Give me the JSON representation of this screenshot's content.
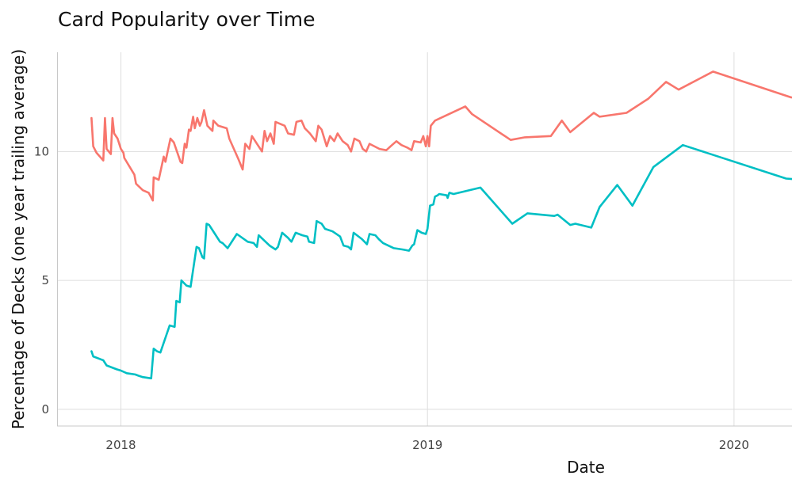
{
  "chart_data": {
    "type": "line",
    "title": "Card Popularity over Time",
    "xlabel": "Date",
    "ylabel": "Percentage of Decks (one year trailing average)",
    "x_ticks": [
      {
        "date": "2018-01-01",
        "label": "2018"
      },
      {
        "date": "2019-01-01",
        "label": "2019"
      },
      {
        "date": "2020-01-01",
        "label": "2020"
      }
    ],
    "y_ticks": [
      {
        "value": 0,
        "label": "0"
      },
      {
        "value": 5,
        "label": "5"
      },
      {
        "value": 10,
        "label": "10"
      }
    ],
    "xlim": [
      "2017-10-17",
      "2020-03-10"
    ],
    "ylim": [
      -0.65,
      13.85
    ],
    "grid": true,
    "legend": "none",
    "series": [
      {
        "color": "#f8766d",
        "points": [
          [
            "2017-11-27",
            11.3
          ],
          [
            "2017-11-29",
            10.2
          ],
          [
            "2017-12-03",
            9.95
          ],
          [
            "2017-12-11",
            9.65
          ],
          [
            "2017-12-13",
            11.3
          ],
          [
            "2017-12-15",
            10.1
          ],
          [
            "2017-12-20",
            9.9
          ],
          [
            "2017-12-22",
            11.3
          ],
          [
            "2017-12-24",
            10.7
          ],
          [
            "2017-12-28",
            10.5
          ],
          [
            "2018-01-01",
            10.1
          ],
          [
            "2018-01-04",
            9.95
          ],
          [
            "2018-01-05",
            9.75
          ],
          [
            "2018-01-17",
            9.1
          ],
          [
            "2018-01-19",
            8.75
          ],
          [
            "2018-01-27",
            8.5
          ],
          [
            "2018-02-03",
            8.4
          ],
          [
            "2018-02-08",
            8.1
          ],
          [
            "2018-02-09",
            9.0
          ],
          [
            "2018-02-15",
            8.9
          ],
          [
            "2018-02-21",
            9.8
          ],
          [
            "2018-02-23",
            9.6
          ],
          [
            "2018-03-01",
            10.5
          ],
          [
            "2018-03-05",
            10.35
          ],
          [
            "2018-03-13",
            9.6
          ],
          [
            "2018-03-15",
            9.55
          ],
          [
            "2018-03-18",
            10.3
          ],
          [
            "2018-03-20",
            10.15
          ],
          [
            "2018-03-23",
            10.85
          ],
          [
            "2018-03-25",
            10.8
          ],
          [
            "2018-03-28",
            11.35
          ],
          [
            "2018-03-30",
            10.9
          ],
          [
            "2018-04-02",
            11.3
          ],
          [
            "2018-04-05",
            11.0
          ],
          [
            "2018-04-07",
            11.15
          ],
          [
            "2018-04-10",
            11.6
          ],
          [
            "2018-04-14",
            11.0
          ],
          [
            "2018-04-20",
            10.8
          ],
          [
            "2018-04-21",
            11.2
          ],
          [
            "2018-04-27",
            11.0
          ],
          [
            "2018-05-07",
            10.9
          ],
          [
            "2018-05-10",
            10.5
          ],
          [
            "2018-05-21",
            9.7
          ],
          [
            "2018-05-26",
            9.3
          ],
          [
            "2018-05-29",
            10.3
          ],
          [
            "2018-06-03",
            10.1
          ],
          [
            "2018-06-06",
            10.6
          ],
          [
            "2018-06-12",
            10.3
          ],
          [
            "2018-06-18",
            10.0
          ],
          [
            "2018-06-21",
            10.8
          ],
          [
            "2018-06-24",
            10.4
          ],
          [
            "2018-06-28",
            10.7
          ],
          [
            "2018-07-02",
            10.3
          ],
          [
            "2018-07-04",
            11.15
          ],
          [
            "2018-07-15",
            11.0
          ],
          [
            "2018-07-19",
            10.7
          ],
          [
            "2018-07-26",
            10.65
          ],
          [
            "2018-07-29",
            11.15
          ],
          [
            "2018-08-04",
            11.2
          ],
          [
            "2018-08-08",
            10.9
          ],
          [
            "2018-08-14",
            10.7
          ],
          [
            "2018-08-21",
            10.4
          ],
          [
            "2018-08-24",
            11.0
          ],
          [
            "2018-08-28",
            10.85
          ],
          [
            "2018-09-03",
            10.2
          ],
          [
            "2018-09-07",
            10.6
          ],
          [
            "2018-09-12",
            10.4
          ],
          [
            "2018-09-16",
            10.7
          ],
          [
            "2018-09-22",
            10.4
          ],
          [
            "2018-09-28",
            10.25
          ],
          [
            "2018-10-02",
            10.0
          ],
          [
            "2018-10-06",
            10.5
          ],
          [
            "2018-10-12",
            10.4
          ],
          [
            "2018-10-16",
            10.1
          ],
          [
            "2018-10-20",
            10.0
          ],
          [
            "2018-10-24",
            10.3
          ],
          [
            "2018-11-05",
            10.1
          ],
          [
            "2018-11-13",
            10.05
          ],
          [
            "2018-11-18",
            10.2
          ],
          [
            "2018-11-25",
            10.4
          ],
          [
            "2018-12-01",
            10.25
          ],
          [
            "2018-12-08",
            10.15
          ],
          [
            "2018-12-13",
            10.05
          ],
          [
            "2018-12-16",
            10.4
          ],
          [
            "2018-12-24",
            10.35
          ],
          [
            "2018-12-27",
            10.6
          ],
          [
            "2018-12-30",
            10.2
          ],
          [
            "2019-01-01",
            10.6
          ],
          [
            "2019-01-03",
            10.2
          ],
          [
            "2019-01-05",
            11.0
          ],
          [
            "2019-01-10",
            11.2
          ],
          [
            "2019-02-15",
            11.75
          ],
          [
            "2019-02-23",
            11.45
          ],
          [
            "2019-04-10",
            10.45
          ],
          [
            "2019-04-27",
            10.55
          ],
          [
            "2019-05-28",
            10.6
          ],
          [
            "2019-06-10",
            11.2
          ],
          [
            "2019-06-20",
            10.75
          ],
          [
            "2019-07-18",
            11.5
          ],
          [
            "2019-07-25",
            11.35
          ],
          [
            "2019-08-26",
            11.5
          ],
          [
            "2019-09-21",
            12.05
          ],
          [
            "2019-10-12",
            12.7
          ],
          [
            "2019-10-27",
            12.4
          ],
          [
            "2019-12-07",
            13.1
          ],
          [
            "2020-03-09",
            12.1
          ],
          [
            "2020-06-07",
            11.8
          ]
        ]
      },
      {
        "color": "#00bfc4",
        "points": [
          [
            "2017-11-27",
            2.25
          ],
          [
            "2017-11-29",
            2.05
          ],
          [
            "2017-12-11",
            1.9
          ],
          [
            "2017-12-15",
            1.7
          ],
          [
            "2017-12-27",
            1.55
          ],
          [
            "2018-01-01",
            1.5
          ],
          [
            "2018-01-08",
            1.4
          ],
          [
            "2018-01-18",
            1.35
          ],
          [
            "2018-01-22",
            1.3
          ],
          [
            "2018-01-27",
            1.25
          ],
          [
            "2018-02-06",
            1.2
          ],
          [
            "2018-02-09",
            2.35
          ],
          [
            "2018-02-13",
            2.25
          ],
          [
            "2018-02-17",
            2.2
          ],
          [
            "2018-02-28",
            3.25
          ],
          [
            "2018-03-06",
            3.2
          ],
          [
            "2018-03-08",
            4.2
          ],
          [
            "2018-03-12",
            4.15
          ],
          [
            "2018-03-14",
            5.0
          ],
          [
            "2018-03-20",
            4.8
          ],
          [
            "2018-03-25",
            4.75
          ],
          [
            "2018-04-01",
            6.3
          ],
          [
            "2018-04-04",
            6.25
          ],
          [
            "2018-04-08",
            5.9
          ],
          [
            "2018-04-10",
            5.85
          ],
          [
            "2018-04-13",
            7.2
          ],
          [
            "2018-04-16",
            7.15
          ],
          [
            "2018-04-23",
            6.8
          ],
          [
            "2018-04-29",
            6.5
          ],
          [
            "2018-05-02",
            6.45
          ],
          [
            "2018-05-08",
            6.25
          ],
          [
            "2018-05-19",
            6.8
          ],
          [
            "2018-06-01",
            6.5
          ],
          [
            "2018-06-08",
            6.45
          ],
          [
            "2018-06-12",
            6.3
          ],
          [
            "2018-06-14",
            6.75
          ],
          [
            "2018-06-27",
            6.35
          ],
          [
            "2018-07-04",
            6.2
          ],
          [
            "2018-07-07",
            6.3
          ],
          [
            "2018-07-12",
            6.85
          ],
          [
            "2018-07-19",
            6.65
          ],
          [
            "2018-07-23",
            6.5
          ],
          [
            "2018-07-28",
            6.85
          ],
          [
            "2018-08-05",
            6.75
          ],
          [
            "2018-08-11",
            6.7
          ],
          [
            "2018-08-13",
            6.5
          ],
          [
            "2018-08-19",
            6.45
          ],
          [
            "2018-08-22",
            7.3
          ],
          [
            "2018-08-28",
            7.2
          ],
          [
            "2018-09-01",
            7.0
          ],
          [
            "2018-09-10",
            6.9
          ],
          [
            "2018-09-19",
            6.7
          ],
          [
            "2018-09-23",
            6.35
          ],
          [
            "2018-09-29",
            6.3
          ],
          [
            "2018-10-02",
            6.2
          ],
          [
            "2018-10-05",
            6.85
          ],
          [
            "2018-10-15",
            6.6
          ],
          [
            "2018-10-21",
            6.4
          ],
          [
            "2018-10-24",
            6.8
          ],
          [
            "2018-10-31",
            6.75
          ],
          [
            "2018-11-04",
            6.6
          ],
          [
            "2018-11-09",
            6.45
          ],
          [
            "2018-11-22",
            6.25
          ],
          [
            "2018-12-02",
            6.2
          ],
          [
            "2018-12-10",
            6.15
          ],
          [
            "2018-12-14",
            6.35
          ],
          [
            "2018-12-16",
            6.4
          ],
          [
            "2018-12-20",
            6.95
          ],
          [
            "2018-12-25",
            6.85
          ],
          [
            "2018-12-30",
            6.8
          ],
          [
            "2019-01-01",
            7.0
          ],
          [
            "2019-01-04",
            7.9
          ],
          [
            "2019-01-08",
            7.95
          ],
          [
            "2019-01-10",
            8.25
          ],
          [
            "2019-01-13",
            8.3
          ],
          [
            "2019-01-15",
            8.35
          ],
          [
            "2019-01-24",
            8.3
          ],
          [
            "2019-01-25",
            8.2
          ],
          [
            "2019-01-27",
            8.4
          ],
          [
            "2019-02-01",
            8.35
          ],
          [
            "2019-03-05",
            8.6
          ],
          [
            "2019-04-12",
            7.2
          ],
          [
            "2019-04-30",
            7.6
          ],
          [
            "2019-06-01",
            7.5
          ],
          [
            "2019-06-05",
            7.55
          ],
          [
            "2019-06-20",
            7.15
          ],
          [
            "2019-06-26",
            7.2
          ],
          [
            "2019-07-15",
            7.05
          ],
          [
            "2019-07-25",
            7.85
          ],
          [
            "2019-08-15",
            8.7
          ],
          [
            "2019-09-02",
            7.9
          ],
          [
            "2019-09-27",
            9.4
          ],
          [
            "2019-11-01",
            10.25
          ],
          [
            "2020-03-03",
            8.95
          ],
          [
            "2020-06-07",
            8.7
          ]
        ]
      }
    ]
  }
}
